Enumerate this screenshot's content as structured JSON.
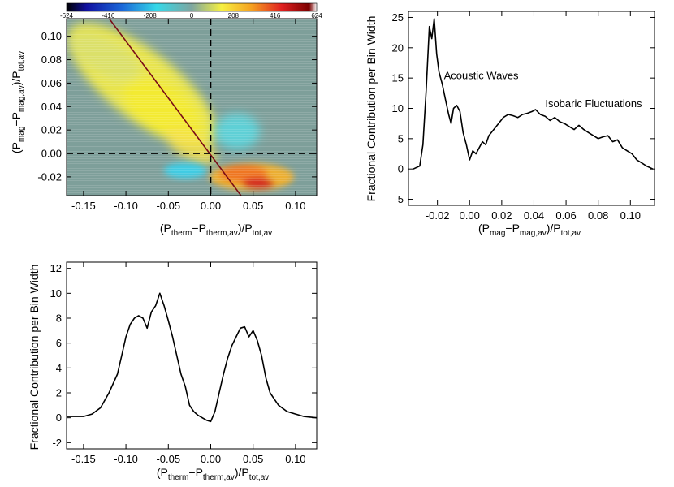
{
  "chart_data": [
    {
      "type": "heatmap",
      "xlabel": {
        "main": "(P",
        "s1": "therm",
        "mid": "−P",
        "s2": "therm,av",
        "end": ")/P",
        "s3": "tot,av"
      },
      "ylabel": {
        "main": "(P",
        "s1": "mag",
        "mid": "−P",
        "s2": "mag,av",
        "end": ")/P",
        "s3": "tot,av"
      },
      "xlim": [
        -0.17,
        0.125
      ],
      "ylim": [
        -0.036,
        0.115
      ],
      "xticks": [
        "-0.15",
        "-0.10",
        "-0.05",
        "0.00",
        "0.05",
        "0.10"
      ],
      "xtick_values": [
        -0.15,
        -0.1,
        -0.05,
        0.0,
        0.05,
        0.1
      ],
      "yticks": [
        "-0.02",
        "0.00",
        "0.02",
        "0.04",
        "0.06",
        "0.08",
        "0.10"
      ],
      "ytick_values": [
        -0.02,
        0.0,
        0.02,
        0.04,
        0.06,
        0.08,
        0.1
      ],
      "colorbar": {
        "range": [
          -624,
          624
        ],
        "ticks": [
          "-624",
          "-416",
          "-208",
          "0",
          "208",
          "416",
          "624"
        ],
        "tick_values": [
          -624,
          -416,
          -208,
          0,
          208,
          416,
          624
        ]
      },
      "fit_line": {
        "x": [
          -0.13,
          0.045
        ],
        "y": [
          0.125,
          -0.045
        ],
        "color": "#7a0c16"
      },
      "reference_lines": {
        "x": 0.0,
        "y": 0.0,
        "style": "dashed"
      },
      "blobs": [
        {
          "name": "main-yellow-band",
          "cx": -0.075,
          "cy": 0.045,
          "value": 240
        },
        {
          "name": "lower-right-red",
          "cx": 0.04,
          "cy": -0.022,
          "value": 560
        },
        {
          "name": "lower-left-cyan",
          "cx": -0.03,
          "cy": -0.012,
          "value": -260
        },
        {
          "name": "upper-right-cyan",
          "cx": 0.025,
          "cy": 0.02,
          "value": -220
        }
      ]
    },
    {
      "type": "line",
      "xlabel": {
        "main": "(P",
        "s1": "mag",
        "mid": "−P",
        "s2": "mag,av",
        "end": ")/P",
        "s3": "tot,av"
      },
      "ylabel": "Fractional Contribution per Bin Width",
      "xlim": [
        -0.038,
        0.115
      ],
      "ylim": [
        -6,
        26
      ],
      "xticks": [
        "-0.02",
        "0.00",
        "0.02",
        "0.04",
        "0.06",
        "0.08",
        "0.10"
      ],
      "xtick_values": [
        -0.02,
        0.0,
        0.02,
        0.04,
        0.06,
        0.08,
        0.1
      ],
      "yticks": [
        "-5",
        "0",
        "5",
        "10",
        "15",
        "20",
        "25"
      ],
      "ytick_values": [
        -5,
        0,
        5,
        10,
        15,
        20,
        25
      ],
      "annotations": [
        {
          "text": "Acoustic Waves",
          "x": -0.016,
          "y": 14.8
        },
        {
          "text": "Isobaric Fluctuations",
          "x": 0.047,
          "y": 10.2
        }
      ],
      "x": [
        -0.035,
        -0.031,
        -0.029,
        -0.027,
        -0.025,
        -0.0235,
        -0.022,
        -0.0205,
        -0.019,
        -0.017,
        -0.015,
        -0.013,
        -0.0115,
        -0.01,
        -0.008,
        -0.006,
        -0.004,
        -0.002,
        0.0,
        0.002,
        0.004,
        0.006,
        0.008,
        0.01,
        0.012,
        0.015,
        0.018,
        0.021,
        0.024,
        0.027,
        0.03,
        0.033,
        0.036,
        0.039,
        0.041,
        0.044,
        0.047,
        0.05,
        0.053,
        0.056,
        0.059,
        0.062,
        0.065,
        0.068,
        0.071,
        0.074,
        0.077,
        0.08,
        0.083,
        0.086,
        0.089,
        0.092,
        0.095,
        0.098,
        0.101,
        0.104,
        0.107,
        0.11,
        0.114
      ],
      "y": [
        0.0,
        0.5,
        4.0,
        13.0,
        23.5,
        21.5,
        24.8,
        19.0,
        16.0,
        14.0,
        11.5,
        9.0,
        7.5,
        10.0,
        10.5,
        9.5,
        6.0,
        4.0,
        1.5,
        3.0,
        2.5,
        3.5,
        4.5,
        4.0,
        5.5,
        6.5,
        7.5,
        8.5,
        9.0,
        8.8,
        8.5,
        9.0,
        9.2,
        9.5,
        9.8,
        9.0,
        8.7,
        8.0,
        8.5,
        7.8,
        7.5,
        7.0,
        6.5,
        7.2,
        6.5,
        6.0,
        5.5,
        5.0,
        5.3,
        5.5,
        4.5,
        4.8,
        3.5,
        3.0,
        2.5,
        1.5,
        1.0,
        0.5,
        0.0
      ]
    },
    {
      "type": "line",
      "xlabel": {
        "main": "(P",
        "s1": "therm",
        "mid": "−P",
        "s2": "therm,av",
        "end": ")/P",
        "s3": "tot,av"
      },
      "ylabel": "Fractional Contribution per Bin Width",
      "xlim": [
        -0.17,
        0.125
      ],
      "ylim": [
        -2.5,
        12.5
      ],
      "xticks": [
        "-0.15",
        "-0.10",
        "-0.05",
        "0.00",
        "0.05",
        "0.10"
      ],
      "xtick_values": [
        -0.15,
        -0.1,
        -0.05,
        0.0,
        0.05,
        0.1
      ],
      "yticks": [
        "-2",
        "0",
        "2",
        "4",
        "6",
        "8",
        "10",
        "12"
      ],
      "ytick_values": [
        -2,
        0,
        2,
        4,
        6,
        8,
        10,
        12
      ],
      "x": [
        -0.17,
        -0.15,
        -0.14,
        -0.13,
        -0.12,
        -0.11,
        -0.105,
        -0.1,
        -0.095,
        -0.09,
        -0.085,
        -0.08,
        -0.075,
        -0.07,
        -0.065,
        -0.06,
        -0.055,
        -0.05,
        -0.045,
        -0.04,
        -0.035,
        -0.03,
        -0.025,
        -0.02,
        -0.015,
        -0.01,
        -0.005,
        0.0,
        0.005,
        0.01,
        0.015,
        0.02,
        0.025,
        0.03,
        0.035,
        0.04,
        0.045,
        0.05,
        0.055,
        0.06,
        0.065,
        0.07,
        0.075,
        0.08,
        0.09,
        0.1,
        0.11,
        0.125
      ],
      "y": [
        0.1,
        0.1,
        0.3,
        0.8,
        2.0,
        3.5,
        5.0,
        6.5,
        7.5,
        8.0,
        8.2,
        8.0,
        7.2,
        8.5,
        9.0,
        10.0,
        9.0,
        7.8,
        6.5,
        5.0,
        3.5,
        2.5,
        1.0,
        0.5,
        0.2,
        0.0,
        -0.2,
        -0.3,
        0.5,
        2.0,
        3.5,
        4.8,
        5.8,
        6.5,
        7.2,
        7.3,
        6.5,
        7.0,
        6.2,
        5.0,
        3.2,
        2.0,
        1.5,
        1.0,
        0.5,
        0.3,
        0.1,
        0.0
      ]
    }
  ]
}
